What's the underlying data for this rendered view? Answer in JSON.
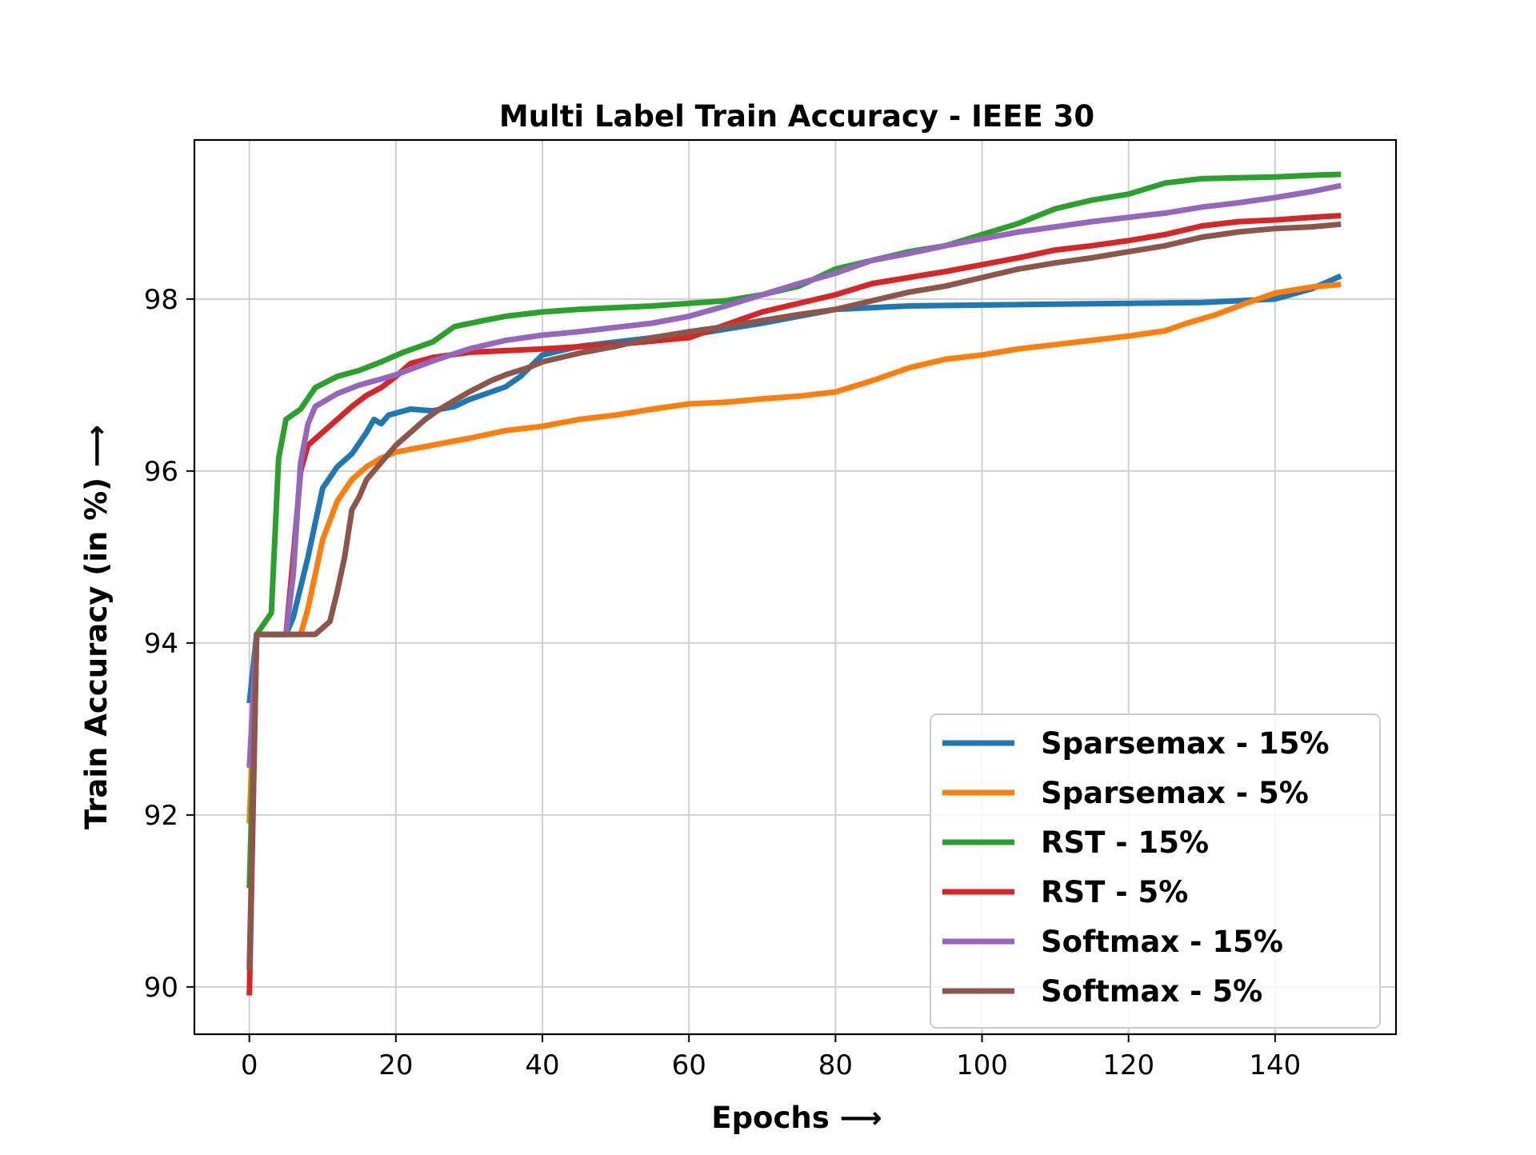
{
  "chart_data": {
    "type": "line",
    "title": "Multi Label Train Accuracy - IEEE 30",
    "xlabel": "Epochs ⟶",
    "ylabel": "Train Accuracy (in %) ⟶",
    "xlim": [
      -7.5,
      156.5
    ],
    "ylim": [
      89.45,
      99.85
    ],
    "xticks": [
      0,
      20,
      40,
      60,
      80,
      100,
      120,
      140
    ],
    "yticks": [
      90,
      92,
      94,
      96,
      98
    ],
    "grid": true,
    "legend_position": "lower-right",
    "series": [
      {
        "name": "Sparsemax - 15%",
        "color": "#1f77b4",
        "points": [
          [
            0,
            93.3
          ],
          [
            1,
            94.1
          ],
          [
            5,
            94.1
          ],
          [
            6,
            94.3
          ],
          [
            8,
            95.0
          ],
          [
            10,
            95.8
          ],
          [
            12,
            96.05
          ],
          [
            14,
            96.2
          ],
          [
            16,
            96.45
          ],
          [
            17,
            96.6
          ],
          [
            18,
            96.55
          ],
          [
            19,
            96.65
          ],
          [
            22,
            96.72
          ],
          [
            25,
            96.7
          ],
          [
            28,
            96.75
          ],
          [
            30,
            96.83
          ],
          [
            33,
            96.92
          ],
          [
            35,
            96.98
          ],
          [
            37,
            97.1
          ],
          [
            40,
            97.35
          ],
          [
            45,
            97.45
          ],
          [
            50,
            97.5
          ],
          [
            55,
            97.55
          ],
          [
            60,
            97.58
          ],
          [
            70,
            97.72
          ],
          [
            80,
            97.88
          ],
          [
            90,
            97.92
          ],
          [
            100,
            97.93
          ],
          [
            110,
            97.94
          ],
          [
            120,
            97.95
          ],
          [
            130,
            97.96
          ],
          [
            135,
            97.98
          ],
          [
            140,
            98.0
          ],
          [
            145,
            98.12
          ],
          [
            149,
            98.27
          ]
        ]
      },
      {
        "name": "Sparsemax - 5%",
        "color": "#ff7f0e",
        "points": [
          [
            0,
            91.9
          ],
          [
            1,
            94.1
          ],
          [
            7,
            94.1
          ],
          [
            8,
            94.4
          ],
          [
            10,
            95.2
          ],
          [
            12,
            95.65
          ],
          [
            14,
            95.9
          ],
          [
            16,
            96.05
          ],
          [
            18,
            96.15
          ],
          [
            20,
            96.22
          ],
          [
            25,
            96.3
          ],
          [
            30,
            96.38
          ],
          [
            35,
            96.47
          ],
          [
            40,
            96.52
          ],
          [
            45,
            96.6
          ],
          [
            50,
            96.65
          ],
          [
            55,
            96.72
          ],
          [
            60,
            96.78
          ],
          [
            65,
            96.8
          ],
          [
            70,
            96.84
          ],
          [
            75,
            96.87
          ],
          [
            80,
            96.92
          ],
          [
            85,
            97.05
          ],
          [
            90,
            97.2
          ],
          [
            95,
            97.3
          ],
          [
            100,
            97.35
          ],
          [
            105,
            97.42
          ],
          [
            110,
            97.47
          ],
          [
            115,
            97.52
          ],
          [
            120,
            97.57
          ],
          [
            125,
            97.63
          ],
          [
            128,
            97.72
          ],
          [
            132,
            97.82
          ],
          [
            136,
            97.95
          ],
          [
            140,
            98.07
          ],
          [
            145,
            98.14
          ],
          [
            149,
            98.17
          ]
        ]
      },
      {
        "name": "RST - 15%",
        "color": "#2ca02c",
        "points": [
          [
            0,
            91.15
          ],
          [
            1,
            94.1
          ],
          [
            3,
            94.35
          ],
          [
            4,
            96.15
          ],
          [
            5,
            96.6
          ],
          [
            7,
            96.72
          ],
          [
            9,
            96.97
          ],
          [
            12,
            97.1
          ],
          [
            15,
            97.17
          ],
          [
            18,
            97.27
          ],
          [
            21,
            97.38
          ],
          [
            25,
            97.5
          ],
          [
            28,
            97.68
          ],
          [
            32,
            97.75
          ],
          [
            35,
            97.8
          ],
          [
            40,
            97.85
          ],
          [
            45,
            97.88
          ],
          [
            50,
            97.9
          ],
          [
            55,
            97.92
          ],
          [
            60,
            97.95
          ],
          [
            65,
            97.98
          ],
          [
            70,
            98.05
          ],
          [
            75,
            98.15
          ],
          [
            80,
            98.35
          ],
          [
            85,
            98.45
          ],
          [
            90,
            98.55
          ],
          [
            95,
            98.62
          ],
          [
            100,
            98.75
          ],
          [
            105,
            98.88
          ],
          [
            110,
            99.05
          ],
          [
            115,
            99.15
          ],
          [
            120,
            99.22
          ],
          [
            125,
            99.35
          ],
          [
            130,
            99.4
          ],
          [
            135,
            99.41
          ],
          [
            140,
            99.42
          ],
          [
            145,
            99.44
          ],
          [
            149,
            99.45
          ]
        ]
      },
      {
        "name": "RST - 5%",
        "color": "#d62728",
        "points": [
          [
            0,
            89.9
          ],
          [
            1,
            94.1
          ],
          [
            5,
            94.1
          ],
          [
            6,
            95.0
          ],
          [
            7,
            96.0
          ],
          [
            8,
            96.3
          ],
          [
            10,
            96.45
          ],
          [
            12,
            96.6
          ],
          [
            14,
            96.75
          ],
          [
            16,
            96.88
          ],
          [
            18,
            96.97
          ],
          [
            20,
            97.1
          ],
          [
            22,
            97.25
          ],
          [
            25,
            97.32
          ],
          [
            30,
            97.38
          ],
          [
            35,
            97.4
          ],
          [
            40,
            97.42
          ],
          [
            50,
            97.47
          ],
          [
            60,
            97.55
          ],
          [
            70,
            97.85
          ],
          [
            80,
            98.05
          ],
          [
            85,
            98.18
          ],
          [
            90,
            98.25
          ],
          [
            95,
            98.32
          ],
          [
            100,
            98.4
          ],
          [
            105,
            98.48
          ],
          [
            110,
            98.57
          ],
          [
            115,
            98.62
          ],
          [
            120,
            98.68
          ],
          [
            125,
            98.75
          ],
          [
            130,
            98.85
          ],
          [
            135,
            98.9
          ],
          [
            140,
            98.92
          ],
          [
            145,
            98.95
          ],
          [
            149,
            98.97
          ]
        ]
      },
      {
        "name": "Softmax - 15%",
        "color": "#9467bd",
        "points": [
          [
            0,
            92.55
          ],
          [
            1,
            94.1
          ],
          [
            5,
            94.1
          ],
          [
            6,
            94.8
          ],
          [
            7,
            96.1
          ],
          [
            8,
            96.55
          ],
          [
            9,
            96.75
          ],
          [
            12,
            96.9
          ],
          [
            15,
            97.0
          ],
          [
            18,
            97.07
          ],
          [
            20,
            97.12
          ],
          [
            25,
            97.28
          ],
          [
            30,
            97.42
          ],
          [
            35,
            97.52
          ],
          [
            40,
            97.58
          ],
          [
            45,
            97.62
          ],
          [
            50,
            97.67
          ],
          [
            55,
            97.72
          ],
          [
            60,
            97.8
          ],
          [
            65,
            97.92
          ],
          [
            70,
            98.05
          ],
          [
            75,
            98.18
          ],
          [
            80,
            98.3
          ],
          [
            85,
            98.45
          ],
          [
            90,
            98.53
          ],
          [
            95,
            98.62
          ],
          [
            100,
            98.7
          ],
          [
            105,
            98.78
          ],
          [
            110,
            98.84
          ],
          [
            115,
            98.9
          ],
          [
            120,
            98.95
          ],
          [
            125,
            99.0
          ],
          [
            130,
            99.07
          ],
          [
            135,
            99.12
          ],
          [
            140,
            99.18
          ],
          [
            145,
            99.25
          ],
          [
            149,
            99.32
          ]
        ]
      },
      {
        "name": "Softmax - 5%",
        "color": "#8c564b",
        "points": [
          [
            0,
            90.2
          ],
          [
            1,
            94.1
          ],
          [
            9,
            94.1
          ],
          [
            11,
            94.25
          ],
          [
            12,
            94.6
          ],
          [
            13,
            95.0
          ],
          [
            14,
            95.55
          ],
          [
            15,
            95.7
          ],
          [
            16,
            95.9
          ],
          [
            18,
            96.1
          ],
          [
            20,
            96.3
          ],
          [
            22,
            96.45
          ],
          [
            24,
            96.6
          ],
          [
            26,
            96.72
          ],
          [
            28,
            96.82
          ],
          [
            30,
            96.92
          ],
          [
            33,
            97.05
          ],
          [
            35,
            97.12
          ],
          [
            38,
            97.2
          ],
          [
            40,
            97.27
          ],
          [
            45,
            97.37
          ],
          [
            50,
            97.45
          ],
          [
            55,
            97.55
          ],
          [
            60,
            97.62
          ],
          [
            65,
            97.68
          ],
          [
            70,
            97.75
          ],
          [
            75,
            97.82
          ],
          [
            80,
            97.88
          ],
          [
            85,
            97.98
          ],
          [
            90,
            98.08
          ],
          [
            95,
            98.15
          ],
          [
            100,
            98.25
          ],
          [
            105,
            98.35
          ],
          [
            110,
            98.42
          ],
          [
            115,
            98.48
          ],
          [
            120,
            98.55
          ],
          [
            125,
            98.62
          ],
          [
            130,
            98.72
          ],
          [
            135,
            98.78
          ],
          [
            140,
            98.82
          ],
          [
            145,
            98.84
          ],
          [
            149,
            98.87
          ]
        ]
      }
    ]
  }
}
